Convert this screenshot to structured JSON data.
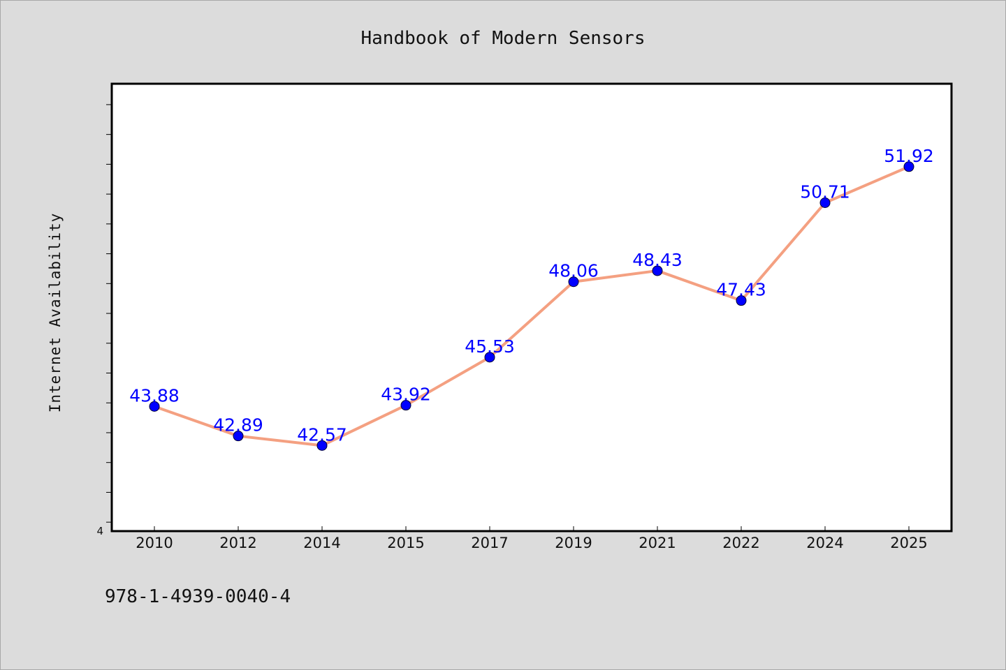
{
  "chart_data": {
    "type": "line",
    "title": "Handbook of Modern Sensors",
    "xlabel": "",
    "ylabel": "Internet Availability",
    "categories": [
      "2010",
      "2012",
      "2014",
      "2015",
      "2017",
      "2019",
      "2021",
      "2022",
      "2024",
      "2025"
    ],
    "series": [
      {
        "values": [
          43.88,
          42.89,
          42.57,
          43.92,
          45.53,
          48.06,
          48.43,
          47.43,
          50.71,
          51.92
        ],
        "labels": [
          "43.88",
          "42.89",
          "42.57",
          "43.92",
          "45.53",
          "48.06",
          "48.43",
          "47.43",
          "50.71",
          "51.92"
        ]
      }
    ],
    "ylim": [
      39.7,
      54.7
    ],
    "yticks": [
      40,
      41,
      42,
      43,
      44,
      45,
      46,
      47,
      48,
      49,
      50,
      51,
      52,
      53,
      54
    ],
    "ytick_labels_shown": {
      "39.7": "4"
    },
    "grid": false,
    "legend": "none",
    "colors": {
      "line": "#f4a081",
      "marker": "#0000ff",
      "data_label": "#0000ff",
      "plot_background": "#ffffff",
      "figure_background": "#dcdcdc"
    }
  },
  "footer_text": "978-1-4939-0040-4"
}
